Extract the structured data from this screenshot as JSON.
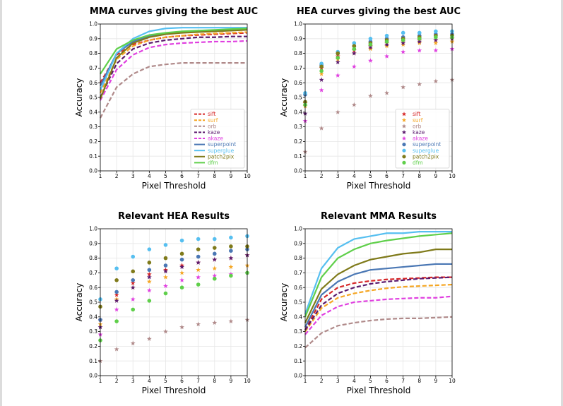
{
  "chart_data": [
    {
      "type": "line",
      "title": "MMA curves giving the best AUC",
      "xlabel": "Pixel Threshold",
      "ylabel": "Accuracy",
      "x": [
        1,
        2,
        3,
        4,
        5,
        6,
        7,
        8,
        9,
        10
      ],
      "xlim": [
        1,
        10
      ],
      "ylim": [
        0,
        1
      ],
      "xticks": [
        "1",
        "2",
        "3",
        "4",
        "5",
        "6",
        "7",
        "8",
        "9",
        "10"
      ],
      "yticks": [
        "0.0",
        "0.1",
        "0.2",
        "0.3",
        "0.4",
        "0.5",
        "0.6",
        "0.7",
        "0.8",
        "0.9",
        "1.0"
      ],
      "grid": true,
      "legend": "bottom-right",
      "series": [
        {
          "name": "sift",
          "color": "#d62728",
          "dash": true,
          "values": [
            0.6,
            0.79,
            0.86,
            0.89,
            0.91,
            0.92,
            0.925,
            0.93,
            0.935,
            0.94
          ]
        },
        {
          "name": "surf",
          "color": "#f5a623",
          "dash": true,
          "values": [
            0.53,
            0.76,
            0.85,
            0.89,
            0.91,
            0.92,
            0.93,
            0.935,
            0.94,
            0.945
          ]
        },
        {
          "name": "orb",
          "color": "#b08a8a",
          "dash": true,
          "values": [
            0.36,
            0.57,
            0.66,
            0.71,
            0.725,
            0.735,
            0.735,
            0.735,
            0.735,
            0.735
          ]
        },
        {
          "name": "kaze",
          "color": "#5b1a6e",
          "dash": true,
          "values": [
            0.5,
            0.73,
            0.83,
            0.87,
            0.89,
            0.9,
            0.91,
            0.91,
            0.915,
            0.915
          ]
        },
        {
          "name": "akaze",
          "color": "#e040e0",
          "dash": true,
          "values": [
            0.48,
            0.69,
            0.79,
            0.84,
            0.86,
            0.87,
            0.875,
            0.88,
            0.88,
            0.885
          ]
        },
        {
          "name": "superpoint",
          "color": "#4a77b4",
          "dash": false,
          "values": [
            0.58,
            0.8,
            0.88,
            0.92,
            0.935,
            0.945,
            0.95,
            0.955,
            0.96,
            0.96
          ]
        },
        {
          "name": "superglue",
          "color": "#56bff0",
          "dash": false,
          "values": [
            0.55,
            0.8,
            0.9,
            0.95,
            0.97,
            0.975,
            0.975,
            0.975,
            0.975,
            0.975
          ]
        },
        {
          "name": "patch2pix",
          "color": "#7f7a1a",
          "dash": false,
          "values": [
            0.49,
            0.77,
            0.87,
            0.91,
            0.93,
            0.94,
            0.945,
            0.95,
            0.955,
            0.96
          ]
        },
        {
          "name": "dfm",
          "color": "#5fcf4a",
          "dash": false,
          "values": [
            0.66,
            0.83,
            0.89,
            0.925,
            0.94,
            0.95,
            0.955,
            0.96,
            0.965,
            0.97
          ]
        }
      ]
    },
    {
      "type": "scatter",
      "title": "HEA curves giving the best AUC",
      "xlabel": "Pixel Threshold",
      "ylabel": "Accuracy",
      "x": [
        1,
        2,
        3,
        4,
        5,
        6,
        7,
        8,
        9,
        10
      ],
      "xlim": [
        1,
        10
      ],
      "ylim": [
        0,
        1
      ],
      "xticks": [
        "1",
        "2",
        "3",
        "4",
        "5",
        "6",
        "7",
        "8",
        "9",
        "10"
      ],
      "yticks": [
        "0.0",
        "0.1",
        "0.2",
        "0.3",
        "0.4",
        "0.5",
        "0.6",
        "0.7",
        "0.8",
        "0.9",
        "1.0"
      ],
      "grid": true,
      "legend": "bottom-right",
      "series": [
        {
          "name": "sift",
          "color": "#d62728",
          "marker": "star",
          "values": [
            0.46,
            0.7,
            0.78,
            0.82,
            0.85,
            0.87,
            0.88,
            0.89,
            0.89,
            0.9
          ]
        },
        {
          "name": "surf",
          "color": "#f5a623",
          "marker": "star",
          "values": [
            0.44,
            0.66,
            0.76,
            0.8,
            0.83,
            0.85,
            0.86,
            0.87,
            0.87,
            0.88
          ]
        },
        {
          "name": "orb",
          "color": "#b08a8a",
          "marker": "star",
          "values": [
            0.13,
            0.29,
            0.4,
            0.45,
            0.51,
            0.53,
            0.57,
            0.59,
            0.61,
            0.62
          ]
        },
        {
          "name": "kaze",
          "color": "#5b1a6e",
          "marker": "star",
          "values": [
            0.39,
            0.62,
            0.74,
            0.8,
            0.84,
            0.86,
            0.87,
            0.88,
            0.89,
            0.9
          ]
        },
        {
          "name": "akaze",
          "color": "#e040e0",
          "marker": "star",
          "values": [
            0.34,
            0.55,
            0.65,
            0.71,
            0.75,
            0.78,
            0.81,
            0.82,
            0.82,
            0.83
          ]
        },
        {
          "name": "superpoint",
          "color": "#4a77b4",
          "marker": "circle",
          "values": [
            0.52,
            0.72,
            0.8,
            0.85,
            0.88,
            0.9,
            0.91,
            0.92,
            0.93,
            0.93
          ]
        },
        {
          "name": "superglue",
          "color": "#56bff0",
          "marker": "circle",
          "values": [
            0.53,
            0.73,
            0.81,
            0.87,
            0.9,
            0.92,
            0.94,
            0.94,
            0.95,
            0.95
          ]
        },
        {
          "name": "patch2pix",
          "color": "#7f7a1a",
          "marker": "circle",
          "values": [
            0.47,
            0.71,
            0.8,
            0.85,
            0.87,
            0.89,
            0.9,
            0.91,
            0.92,
            0.92
          ]
        },
        {
          "name": "dfm",
          "color": "#5fcf4a",
          "marker": "circle",
          "values": [
            0.45,
            0.68,
            0.77,
            0.83,
            0.86,
            0.88,
            0.89,
            0.9,
            0.91,
            0.91
          ]
        }
      ]
    },
    {
      "type": "scatter",
      "title": "Relevant HEA Results",
      "xlabel": "Pixel Threshold",
      "ylabel": "Accuracy",
      "x": [
        1,
        2,
        3,
        4,
        5,
        6,
        7,
        8,
        9,
        10
      ],
      "xlim": [
        1,
        10
      ],
      "ylim": [
        0,
        1
      ],
      "xticks": [
        "1",
        "2",
        "3",
        "4",
        "5",
        "6",
        "7",
        "8",
        "9",
        "10"
      ],
      "yticks": [
        "0.0",
        "0.1",
        "0.2",
        "0.3",
        "0.4",
        "0.5",
        "0.6",
        "0.7",
        "0.8",
        "0.9",
        "1.0"
      ],
      "grid": true,
      "series": [
        {
          "name": "sift",
          "color": "#d62728",
          "marker": "star",
          "values": [
            0.38,
            0.55,
            0.63,
            0.69,
            0.72,
            0.75,
            0.77,
            0.79,
            0.8,
            0.82
          ]
        },
        {
          "name": "surf",
          "color": "#f5a623",
          "marker": "star",
          "values": [
            0.35,
            0.52,
            0.6,
            0.64,
            0.67,
            0.7,
            0.72,
            0.73,
            0.74,
            0.75
          ]
        },
        {
          "name": "orb",
          "color": "#b08a8a",
          "marker": "star",
          "values": [
            0.1,
            0.18,
            0.22,
            0.25,
            0.3,
            0.33,
            0.35,
            0.36,
            0.37,
            0.38
          ]
        },
        {
          "name": "kaze",
          "color": "#5b1a6e",
          "marker": "star",
          "values": [
            0.33,
            0.51,
            0.6,
            0.67,
            0.71,
            0.74,
            0.77,
            0.79,
            0.8,
            0.82
          ]
        },
        {
          "name": "akaze",
          "color": "#e040e0",
          "marker": "star",
          "values": [
            0.28,
            0.45,
            0.52,
            0.58,
            0.61,
            0.65,
            0.67,
            0.68,
            0.69,
            0.7
          ]
        },
        {
          "name": "superpoint",
          "color": "#4a77b4",
          "marker": "circle",
          "values": [
            0.38,
            0.57,
            0.65,
            0.72,
            0.75,
            0.79,
            0.81,
            0.83,
            0.85,
            0.86
          ]
        },
        {
          "name": "superglue",
          "color": "#56bff0",
          "marker": "circle",
          "values": [
            0.52,
            0.73,
            0.81,
            0.86,
            0.89,
            0.92,
            0.93,
            0.93,
            0.94,
            0.95
          ]
        },
        {
          "name": "patch2pix",
          "color": "#7f7a1a",
          "marker": "circle",
          "values": [
            0.47,
            0.65,
            0.71,
            0.77,
            0.8,
            0.83,
            0.86,
            0.87,
            0.88,
            0.88
          ]
        },
        {
          "name": "dfm",
          "color": "#5fcf4a",
          "marker": "circle",
          "values": [
            0.24,
            0.37,
            0.45,
            0.51,
            0.56,
            0.6,
            0.62,
            0.66,
            0.68,
            0.7
          ]
        }
      ]
    },
    {
      "type": "line",
      "title": "Relevant MMA Results",
      "xlabel": "Pixel Threshold",
      "ylabel": "Accuracy",
      "x": [
        1,
        2,
        3,
        4,
        5,
        6,
        7,
        8,
        9,
        10
      ],
      "xlim": [
        1,
        10
      ],
      "ylim": [
        0,
        1
      ],
      "xticks": [
        "1",
        "2",
        "3",
        "4",
        "5",
        "6",
        "7",
        "8",
        "9",
        "10"
      ],
      "yticks": [
        "0.0",
        "0.1",
        "0.2",
        "0.3",
        "0.4",
        "0.5",
        "0.6",
        "0.7",
        "0.8",
        "0.9",
        "1.0"
      ],
      "grid": true,
      "series": [
        {
          "name": "sift",
          "color": "#d62728",
          "dash": true,
          "values": [
            0.31,
            0.52,
            0.6,
            0.63,
            0.645,
            0.655,
            0.66,
            0.665,
            0.67,
            0.67
          ]
        },
        {
          "name": "surf",
          "color": "#f5a623",
          "dash": true,
          "values": [
            0.3,
            0.46,
            0.53,
            0.56,
            0.58,
            0.595,
            0.605,
            0.61,
            0.615,
            0.62
          ]
        },
        {
          "name": "orb",
          "color": "#b08a8a",
          "dash": true,
          "values": [
            0.19,
            0.29,
            0.34,
            0.36,
            0.375,
            0.385,
            0.39,
            0.39,
            0.395,
            0.4
          ]
        },
        {
          "name": "kaze",
          "color": "#5b1a6e",
          "dash": true,
          "values": [
            0.31,
            0.48,
            0.56,
            0.6,
            0.625,
            0.64,
            0.65,
            0.66,
            0.665,
            0.67
          ]
        },
        {
          "name": "akaze",
          "color": "#e040e0",
          "dash": true,
          "values": [
            0.28,
            0.41,
            0.47,
            0.5,
            0.51,
            0.52,
            0.525,
            0.53,
            0.53,
            0.54
          ]
        },
        {
          "name": "superpoint",
          "color": "#4a77b4",
          "dash": false,
          "values": [
            0.33,
            0.55,
            0.64,
            0.69,
            0.72,
            0.73,
            0.74,
            0.75,
            0.76,
            0.76
          ]
        },
        {
          "name": "superglue",
          "color": "#56bff0",
          "dash": false,
          "values": [
            0.42,
            0.73,
            0.87,
            0.93,
            0.95,
            0.97,
            0.97,
            0.98,
            0.98,
            0.98
          ]
        },
        {
          "name": "patch2pix",
          "color": "#7f7a1a",
          "dash": false,
          "values": [
            0.36,
            0.59,
            0.69,
            0.75,
            0.79,
            0.81,
            0.83,
            0.84,
            0.86,
            0.86
          ]
        },
        {
          "name": "dfm",
          "color": "#5fcf4a",
          "dash": false,
          "values": [
            0.4,
            0.67,
            0.8,
            0.86,
            0.9,
            0.92,
            0.935,
            0.95,
            0.96,
            0.97
          ]
        }
      ]
    }
  ]
}
